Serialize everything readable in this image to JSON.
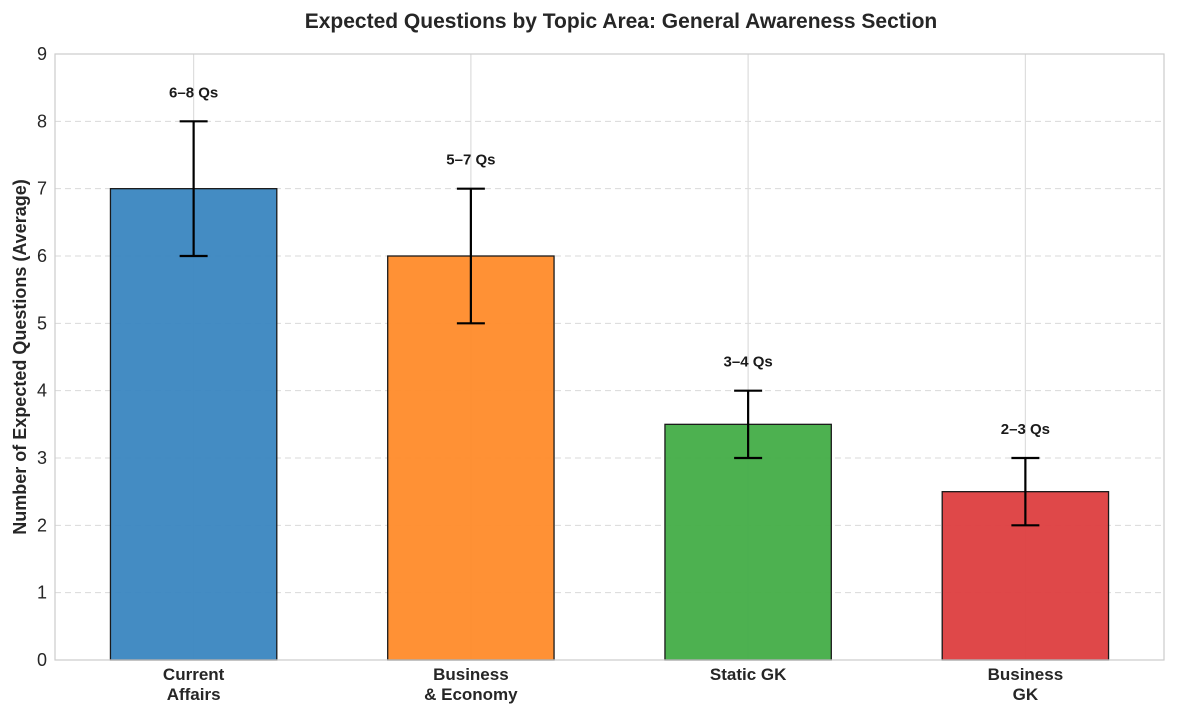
{
  "chart_data": {
    "type": "bar",
    "title": "Expected Questions by Topic Area: General Awareness Section",
    "xlabel": "",
    "ylabel": "Number of Expected Questions (Average)",
    "ylim": [
      0,
      9
    ],
    "yticks": [
      0,
      1,
      2,
      3,
      4,
      5,
      6,
      7,
      8,
      9
    ],
    "grid": true,
    "categories": [
      [
        "Current",
        "Affairs"
      ],
      [
        "Business",
        "& Economy"
      ],
      [
        "Static GK"
      ],
      [
        "Business",
        "GK"
      ]
    ],
    "values": [
      7,
      6,
      3.5,
      2.5
    ],
    "error_low": [
      6,
      5,
      3,
      2
    ],
    "error_high": [
      8,
      7,
      4,
      3
    ],
    "data_labels": [
      "6–8 Qs",
      "5–7 Qs",
      "3–4 Qs",
      "2–3 Qs"
    ],
    "colors": [
      "#3a86c0",
      "#ff8b2a",
      "#43ad47",
      "#dd3e3f"
    ]
  }
}
